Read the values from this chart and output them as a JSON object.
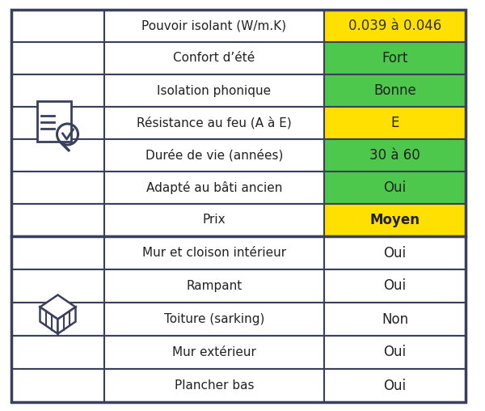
{
  "section1_rows": [
    {
      "label": "Pouvoir isolant (W/m.K)",
      "value": "0.039 à 0.046",
      "bg": "#FFE000",
      "text_color": "#333333",
      "bold": false
    },
    {
      "label": "Confort d’été",
      "value": "Fort",
      "bg": "#4DC84D",
      "text_color": "#222222",
      "bold": false
    },
    {
      "label": "Isolation phonique",
      "value": "Bonne",
      "bg": "#4DC84D",
      "text_color": "#222222",
      "bold": false
    },
    {
      "label": "Résistance au feu (A à E)",
      "value": "E",
      "bg": "#FFE000",
      "text_color": "#222222",
      "bold": false
    },
    {
      "label": "Durée de vie (années)",
      "value": "30 à 60",
      "bg": "#4DC84D",
      "text_color": "#222222",
      "bold": false
    },
    {
      "label": "Adapté au bâti ancien",
      "value": "Oui",
      "bg": "#4DC84D",
      "text_color": "#222222",
      "bold": false
    },
    {
      "label": "Prix",
      "value": "Moyen",
      "bg": "#FFE000",
      "text_color": "#222222",
      "bold": true
    }
  ],
  "section2_rows": [
    {
      "label": "Mur et cloison intérieur",
      "value": "Oui"
    },
    {
      "label": "Rampant",
      "value": "Oui"
    },
    {
      "label": "Toiture (sarking)",
      "value": "Non"
    },
    {
      "label": "Mur extérieur",
      "value": "Oui"
    },
    {
      "label": "Plancher bas",
      "value": "Oui"
    }
  ],
  "border_color": "#3a3f5c",
  "text_color_dark": "#222222",
  "font_size": 11.0,
  "value_font_size": 12.0
}
